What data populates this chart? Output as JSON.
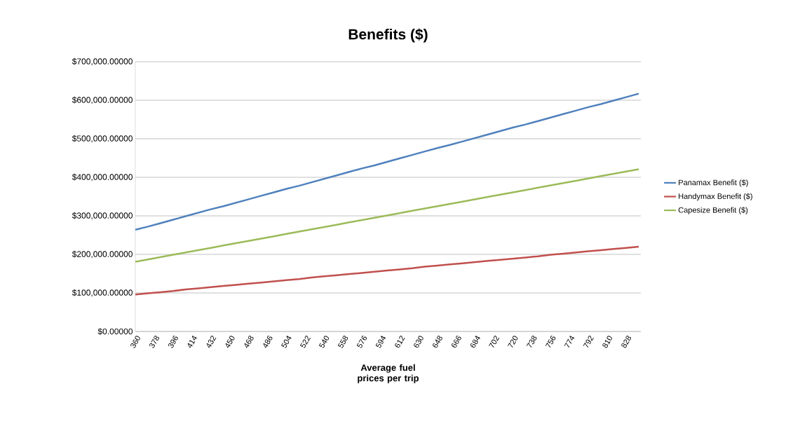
{
  "chart_data": {
    "type": "line",
    "title": "Benefits ($)",
    "xlabel": "Average fuel prices per trip",
    "x": [
      360,
      372,
      384,
      396,
      408,
      420,
      432,
      444,
      456,
      468,
      480,
      492,
      504,
      516,
      528,
      540,
      552,
      564,
      576,
      588,
      600,
      612,
      624,
      636,
      648,
      660,
      672,
      684,
      696,
      708,
      720,
      732,
      744,
      756,
      768,
      780,
      792,
      804,
      816,
      828,
      840
    ],
    "series": [
      {
        "name": "Panamax Benefit ($)",
        "color": "#4f81bd",
        "values": [
          264000,
          272000,
          281000,
          290000,
          299000,
          308000,
          317000,
          325000,
          334000,
          343000,
          352000,
          361000,
          370000,
          378000,
          387000,
          396000,
          405000,
          414000,
          423000,
          431000,
          440000,
          449000,
          458000,
          467000,
          476000,
          484000,
          493000,
          502000,
          511000,
          520000,
          529000,
          537000,
          546000,
          555000,
          564000,
          573000,
          582000,
          590000,
          599000,
          608000,
          617000
        ]
      },
      {
        "name": "Handymax Benefit ($)",
        "color": "#c0504d",
        "values": [
          96000,
          99000,
          102000,
          105000,
          109000,
          112000,
          115000,
          118000,
          121000,
          124000,
          127000,
          130000,
          133000,
          136000,
          140000,
          143000,
          146000,
          149000,
          152000,
          155000,
          158000,
          161000,
          164000,
          168000,
          171000,
          174000,
          177000,
          180000,
          183000,
          186000,
          189000,
          192000,
          195000,
          199000,
          202000,
          205000,
          208000,
          211000,
          214000,
          217000,
          220000
        ]
      },
      {
        "name": "Capesize Benefit ($)",
        "color": "#9bbb59",
        "values": [
          181000,
          187000,
          193000,
          199000,
          205000,
          211000,
          217000,
          223000,
          229000,
          235000,
          241000,
          247000,
          253000,
          259000,
          265000,
          271000,
          277000,
          283000,
          289000,
          295000,
          301000,
          307000,
          313000,
          319000,
          325000,
          331000,
          337000,
          343000,
          349000,
          355000,
          361000,
          367000,
          373000,
          379000,
          385000,
          391000,
          397000,
          403000,
          409000,
          415000,
          421000
        ]
      }
    ],
    "xlim": [
      360,
      842
    ],
    "xticks": [
      360,
      378,
      396,
      414,
      432,
      450,
      468,
      486,
      504,
      522,
      540,
      558,
      576,
      594,
      612,
      630,
      648,
      666,
      684,
      702,
      720,
      738,
      756,
      774,
      792,
      810,
      828
    ],
    "ylim": [
      0,
      700000
    ],
    "yticks": [
      {
        "value": 0,
        "label": "$0.00000"
      },
      {
        "value": 100000,
        "label": "$100,000.00000"
      },
      {
        "value": 200000,
        "label": "$200,000.00000"
      },
      {
        "value": 300000,
        "label": "$300,000.00000"
      },
      {
        "value": 400000,
        "label": "$400,000.00000"
      },
      {
        "value": 500000,
        "label": "$500,000.00000"
      },
      {
        "value": 600000,
        "label": "$600,000.00000"
      },
      {
        "value": 700000,
        "label": "$700,000.00000"
      }
    ],
    "grid": "y",
    "legend": "right",
    "marker": "none",
    "line_style": "solid"
  }
}
